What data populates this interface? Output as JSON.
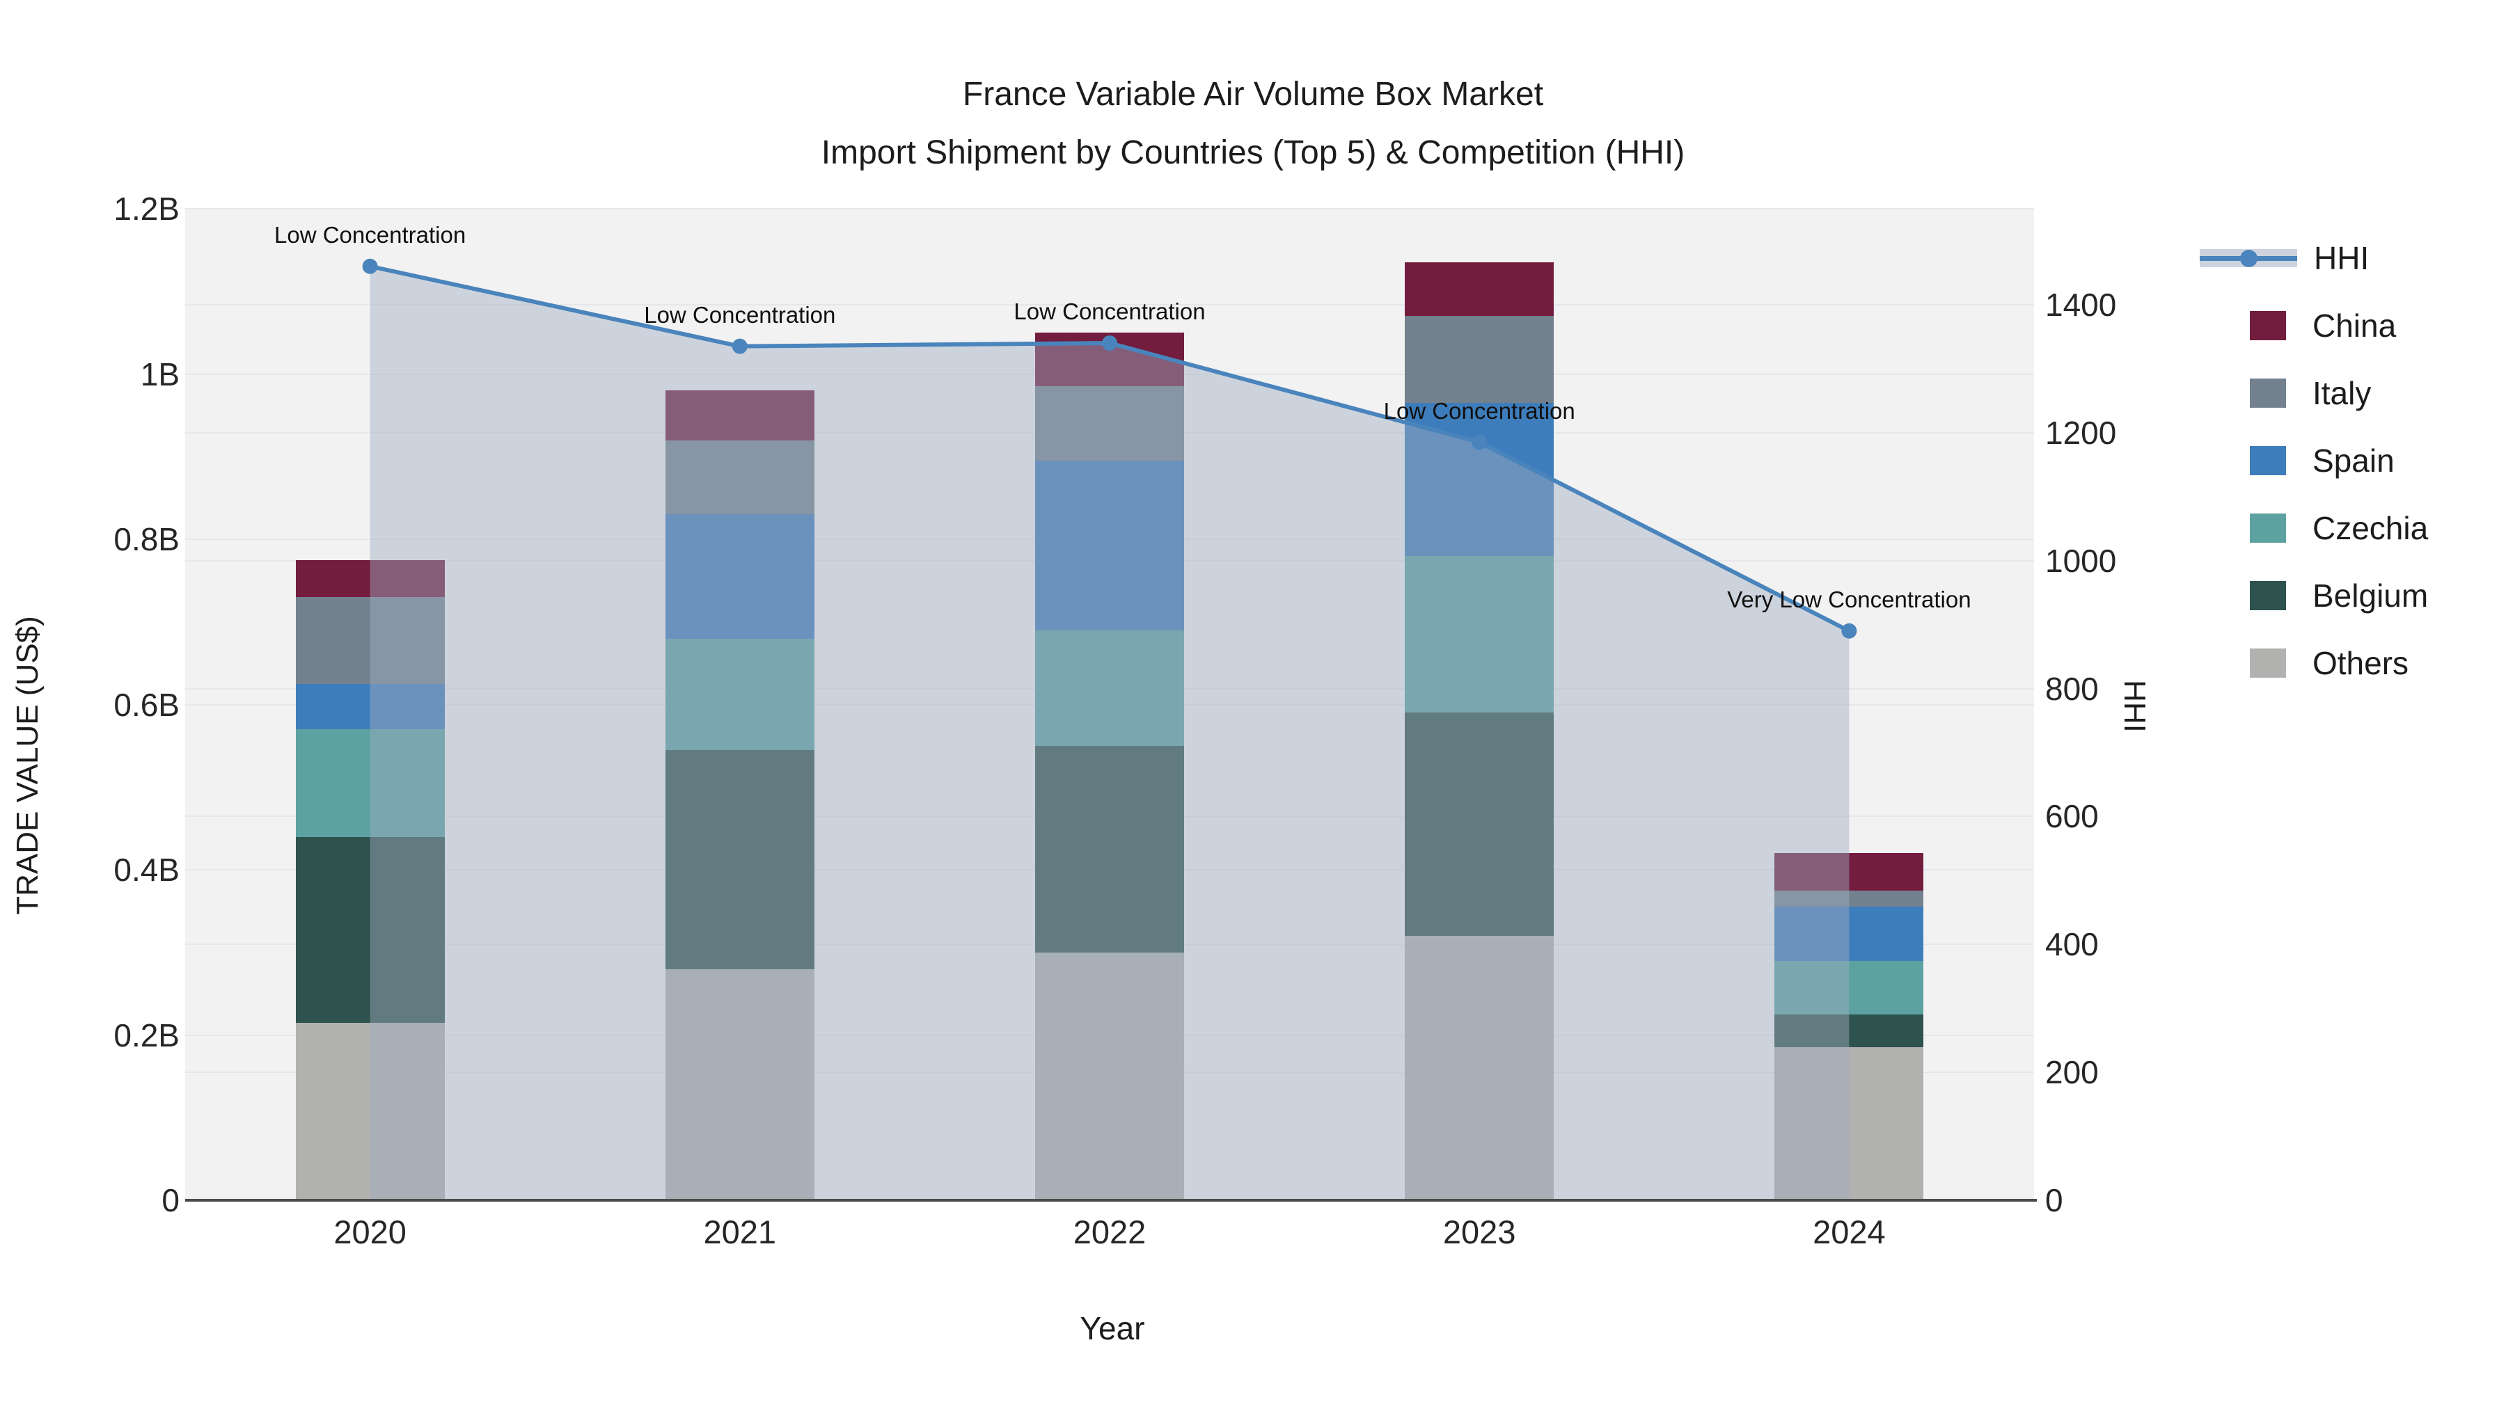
{
  "title": {
    "line1": "France Variable Air Volume Box Market",
    "line2": "Import Shipment by Countries (Top 5) & Competition (HHI)"
  },
  "chart_data": {
    "type": "combo-stacked-bar-line",
    "categories": [
      "2020",
      "2021",
      "2022",
      "2023",
      "2024"
    ],
    "xlabel": "Year",
    "left_axis": {
      "label": "TRADE VALUE (US$)",
      "max": 1.2,
      "unit": "billions US$",
      "ticks": [
        {
          "v": 0,
          "label": "0"
        },
        {
          "v": 0.2,
          "label": "0.2B"
        },
        {
          "v": 0.4,
          "label": "0.4B"
        },
        {
          "v": 0.6,
          "label": "0.6B"
        },
        {
          "v": 0.8,
          "label": "0.8B"
        },
        {
          "v": 1.0,
          "label": "1B"
        },
        {
          "v": 1.2,
          "label": "1.2B"
        }
      ]
    },
    "right_axis": {
      "label": "HHI",
      "max": 1550,
      "ticks": [
        {
          "v": 0,
          "label": "0"
        },
        {
          "v": 200,
          "label": "200"
        },
        {
          "v": 400,
          "label": "400"
        },
        {
          "v": 600,
          "label": "600"
        },
        {
          "v": 800,
          "label": "800"
        },
        {
          "v": 1000,
          "label": "1000"
        },
        {
          "v": 1200,
          "label": "1200"
        },
        {
          "v": 1400,
          "label": "1400"
        }
      ]
    },
    "series": [
      {
        "name": "Others",
        "color": "#b1b1af",
        "values": [
          0.215,
          0.28,
          0.3,
          0.32,
          0.185
        ]
      },
      {
        "name": "Belgium",
        "color": "#2e524d",
        "values": [
          0.225,
          0.265,
          0.25,
          0.27,
          0.04
        ]
      },
      {
        "name": "Czechia",
        "color": "#5ba2a1",
        "values": [
          0.13,
          0.135,
          0.14,
          0.19,
          0.065
        ]
      },
      {
        "name": "Spain",
        "color": "#3e7dbb",
        "values": [
          0.055,
          0.15,
          0.205,
          0.185,
          0.065
        ]
      },
      {
        "name": "Italy",
        "color": "#73818f",
        "values": [
          0.105,
          0.09,
          0.09,
          0.105,
          0.02
        ]
      },
      {
        "name": "China",
        "color": "#721c3e",
        "values": [
          0.045,
          0.06,
          0.065,
          0.065,
          0.045
        ]
      }
    ],
    "line_series": {
      "name": "HHI",
      "color": "#4a84bc",
      "area_fill": "rgba(160,172,192,0.45)",
      "values": [
        1460,
        1335,
        1340,
        1185,
        890
      ]
    },
    "annotations": [
      {
        "category": "2020",
        "text": "Low Concentration"
      },
      {
        "category": "2021",
        "text": "Low Concentration"
      },
      {
        "category": "2022",
        "text": "Low Concentration"
      },
      {
        "category": "2023",
        "text": "Low Concentration"
      },
      {
        "category": "2024",
        "text": "Very Low Concentration"
      }
    ],
    "legend": {
      "position": "right",
      "items": [
        "HHI",
        "China",
        "Italy",
        "Spain",
        "Czechia",
        "Belgium",
        "Others"
      ]
    },
    "plot_background": "#f2f2f2",
    "grid_color": "#e7e7ea",
    "grid_on": true
  }
}
